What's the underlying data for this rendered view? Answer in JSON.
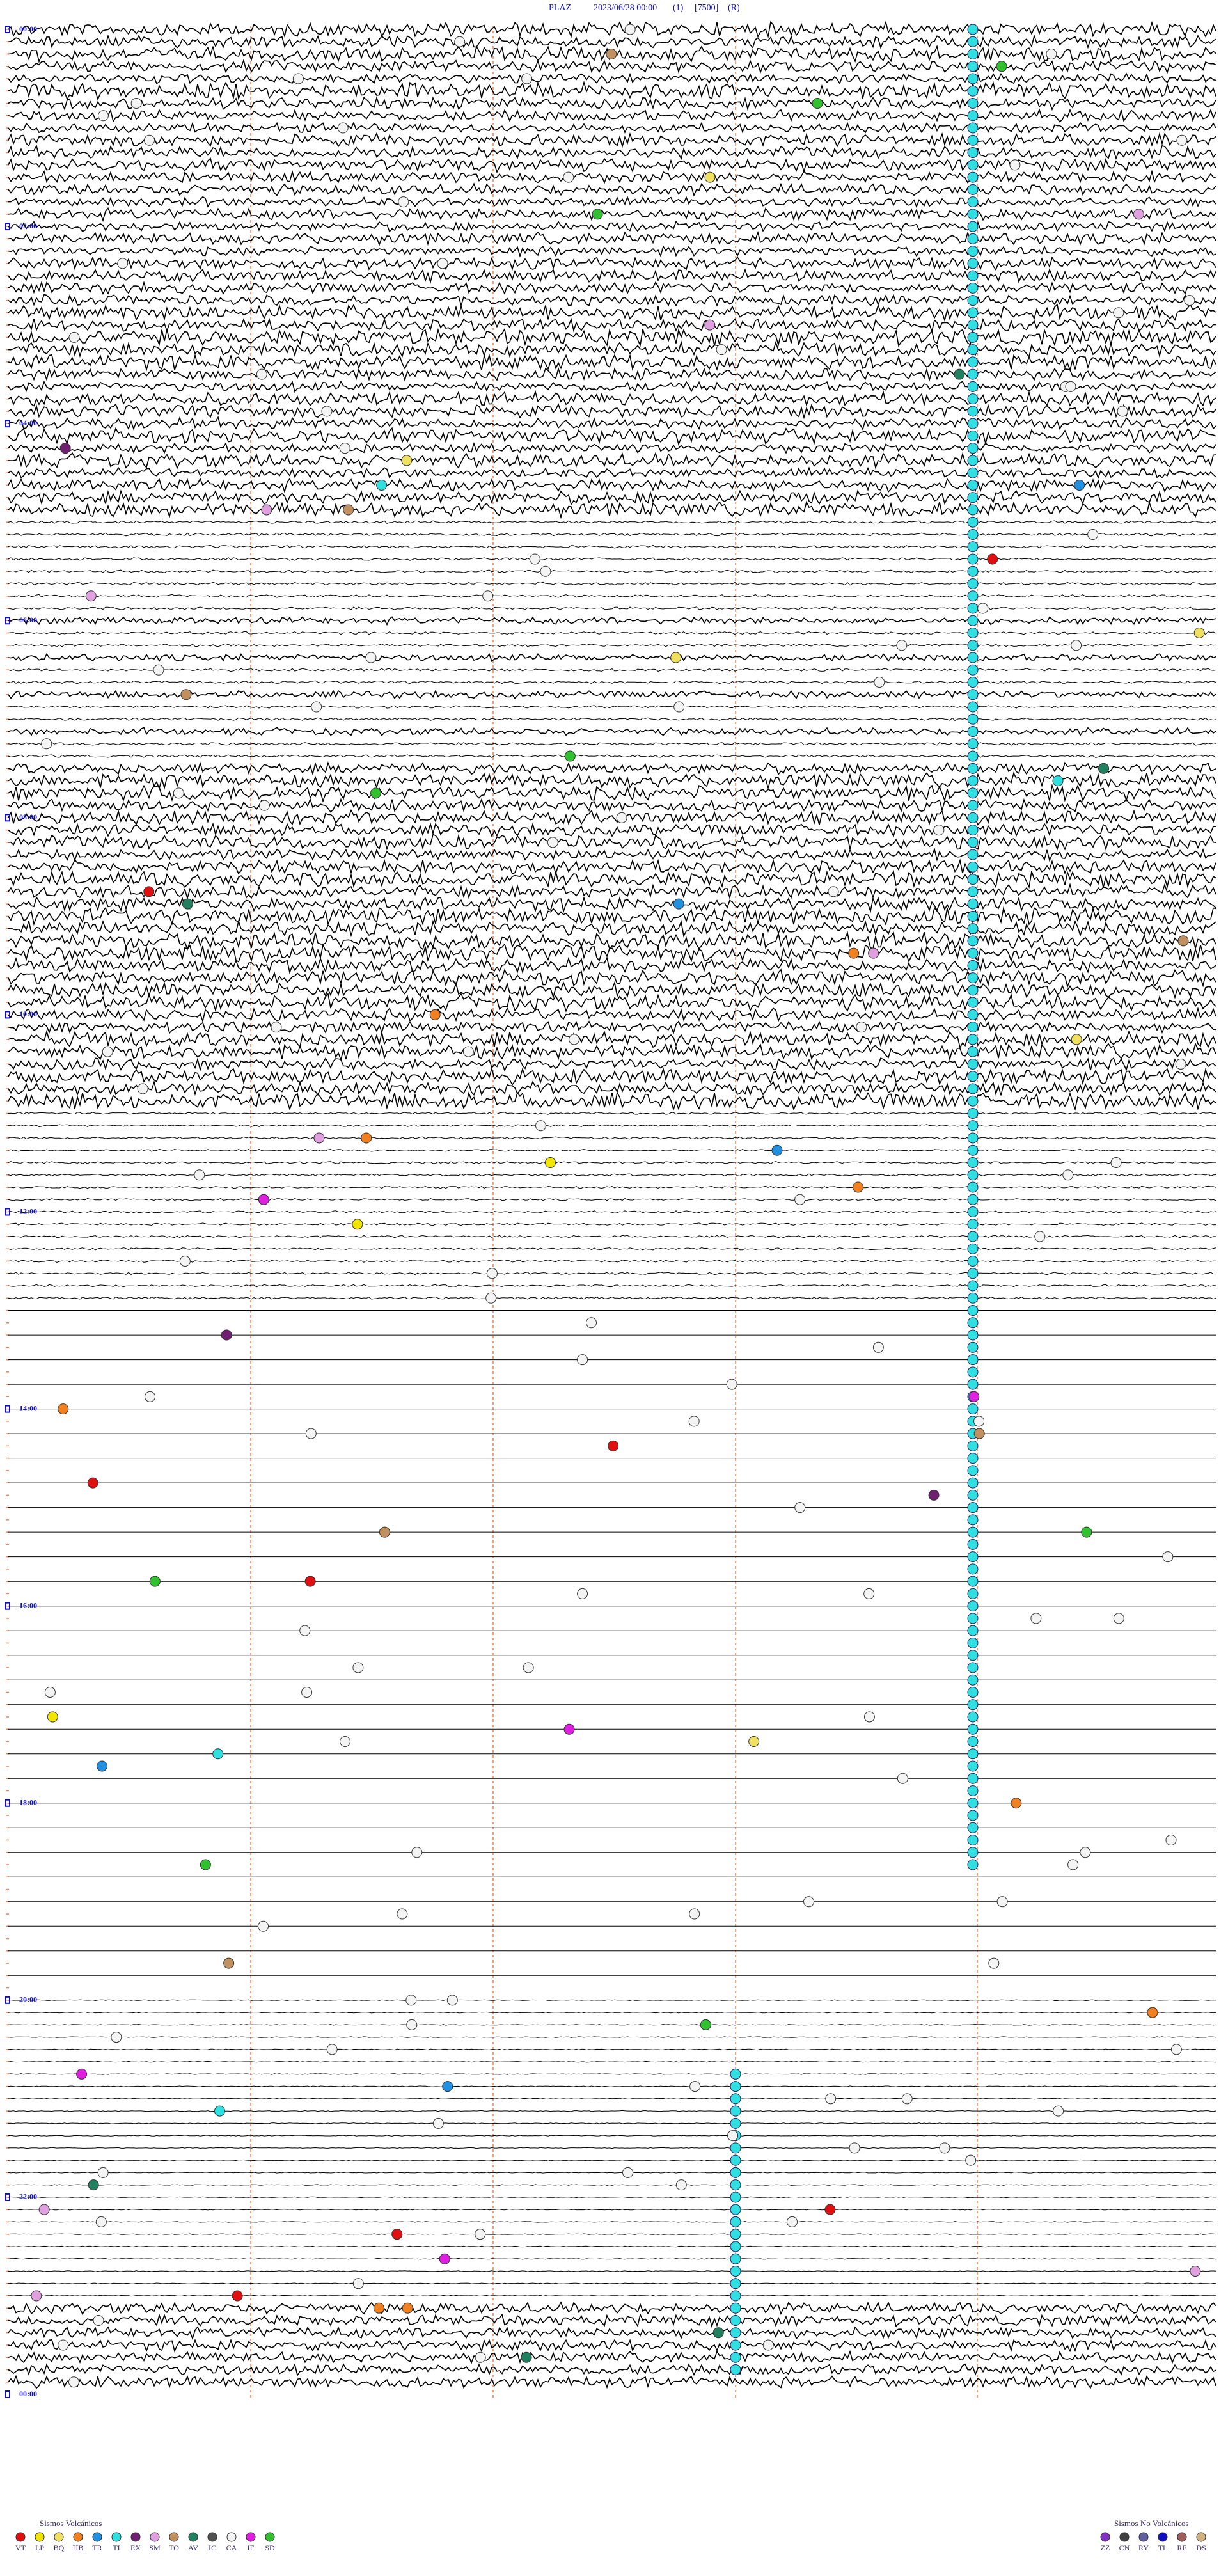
{
  "header": {
    "station": "PLAZ",
    "datetime": "2023/06/28 00:00",
    "channel": "(1)",
    "scale": "[7500]",
    "mode": "(R)"
  },
  "hour_labels": [
    "00:00",
    "02:00",
    "04:00",
    "06:00",
    "08:00",
    "10:00",
    "12:00",
    "14:00",
    "16:00",
    "18:00",
    "20:00",
    "22:00",
    "00:00"
  ],
  "legend_volcanic": {
    "title": "Sismos Volcánicos",
    "items": [
      {
        "label": "VT",
        "color": "#e01010"
      },
      {
        "label": "LP",
        "color": "#f2e600"
      },
      {
        "label": "BQ",
        "color": "#f0e060"
      },
      {
        "label": "HB",
        "color": "#f08020"
      },
      {
        "label": "TR",
        "color": "#2090e0"
      },
      {
        "label": "TI",
        "color": "#30e0e0"
      },
      {
        "label": "EX",
        "color": "#702070"
      },
      {
        "label": "SM",
        "color": "#e0a0e0"
      },
      {
        "label": "TO",
        "color": "#c09060"
      },
      {
        "label": "AV",
        "color": "#208060"
      },
      {
        "label": "IC",
        "color": "#505050"
      },
      {
        "label": "CA",
        "color": "#f4f4f4"
      },
      {
        "label": "IF",
        "color": "#e020e0"
      },
      {
        "label": "SD",
        "color": "#30c030"
      }
    ]
  },
  "legend_non_volcanic": {
    "title": "Sismos No Volcánicos",
    "items": [
      {
        "label": "ZZ",
        "color": "#8030c0"
      },
      {
        "label": "CN",
        "color": "#404040"
      },
      {
        "label": "RY",
        "color": "#6060a0"
      },
      {
        "label": "TL",
        "color": "#1010c0"
      },
      {
        "label": "RE",
        "color": "#a06060"
      },
      {
        "label": "DS",
        "color": "#d0b080"
      }
    ]
  }
}
